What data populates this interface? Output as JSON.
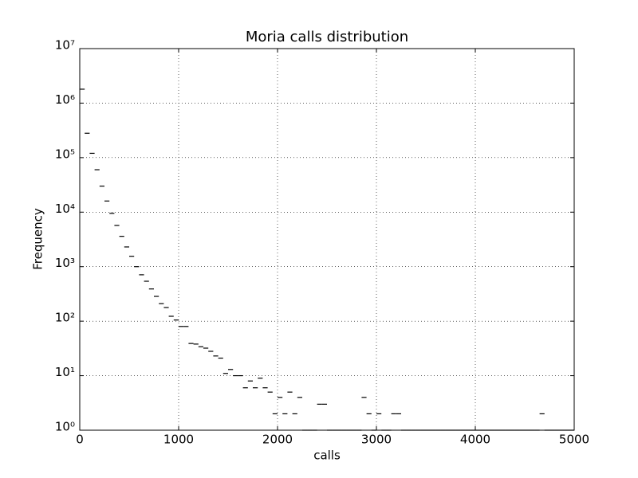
{
  "chart_data": {
    "type": "histogram",
    "title": "Moria calls distribution",
    "xlabel": "calls",
    "ylabel": "Frequency",
    "bins": [
      0,
      50,
      100,
      150,
      200,
      250,
      300,
      350,
      400,
      450,
      500,
      550,
      600,
      650,
      700,
      750,
      800,
      850,
      900,
      950,
      1000,
      1050,
      1100,
      1150,
      1200,
      1250,
      1300,
      1350,
      1400,
      1450,
      1500,
      1550,
      1600,
      1650,
      1700,
      1750,
      1800,
      1850,
      1900,
      1950,
      2000,
      2050,
      2100,
      2150,
      2200,
      2250,
      2300,
      2350,
      2400,
      2450,
      2500,
      2550,
      2600,
      2650,
      2700,
      2750,
      2800,
      2850,
      2900,
      2950,
      3000,
      3050,
      3100,
      3150,
      3200,
      3250,
      3300,
      3350,
      3400,
      3450,
      3500,
      3550,
      3600,
      3650,
      3700,
      3750,
      3800,
      3850,
      3900,
      3950,
      4000,
      4050,
      4100,
      4150,
      4200,
      4250,
      4300,
      4350,
      4400,
      4450,
      4500,
      4550,
      4600,
      4650,
      4700,
      4750,
      4800,
      4850,
      4900,
      4950,
      5000
    ],
    "values": [
      1800000,
      280000,
      120000,
      60000,
      30000,
      16000,
      9500,
      5700,
      3600,
      2300,
      1550,
      1000,
      710,
      540,
      390,
      285,
      210,
      178,
      123,
      105,
      80,
      80,
      39,
      38,
      34,
      32,
      28,
      23,
      21,
      11,
      13,
      10,
      10,
      6,
      8,
      6,
      9,
      6,
      5,
      2,
      4,
      2,
      5,
      2,
      4,
      1,
      1,
      1,
      3,
      3,
      1,
      1,
      1,
      1,
      1,
      1,
      1,
      4,
      2,
      1,
      2,
      1,
      1,
      2,
      2,
      1,
      1,
      1,
      1,
      1,
      1,
      1,
      1,
      1,
      1,
      1,
      1,
      1,
      1,
      1,
      1,
      1,
      1,
      1,
      1,
      1,
      1,
      1,
      1,
      1,
      1,
      1,
      1,
      2,
      1,
      1,
      1,
      1,
      1,
      1
    ],
    "color": "#000000",
    "xlim": [
      0,
      5000
    ],
    "xticks": [
      0,
      1000,
      2000,
      3000,
      4000,
      5000
    ],
    "ylim": [
      1,
      10000000
    ],
    "yscale": "log",
    "yticks": [
      {
        "value": 1,
        "label": "10⁰"
      },
      {
        "value": 10,
        "label": "10¹"
      },
      {
        "value": 100,
        "label": "10²"
      },
      {
        "value": 1000,
        "label": "10³"
      },
      {
        "value": 10000,
        "label": "10⁴"
      },
      {
        "value": 100000,
        "label": "10⁵"
      },
      {
        "value": 1000000,
        "label": "10⁶"
      },
      {
        "value": 10000000,
        "label": "10⁷"
      }
    ],
    "grid": true
  }
}
